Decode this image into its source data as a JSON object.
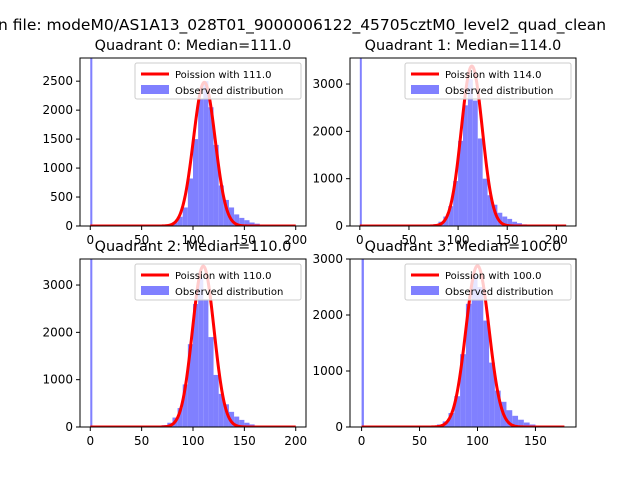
{
  "figure": {
    "title": "n file: modeM0/AS1A13_028T01_9000006122_45705cztM0_level2_quad_clean"
  },
  "colors": {
    "poisson_line": "#ff0000",
    "observed_hist": "#8080ff",
    "axes": "#000000"
  },
  "chart_data": [
    {
      "type": "bar",
      "title": "Quadrant 0: Median=111.0",
      "xlim": [
        -10,
        210
      ],
      "ylim": [
        0,
        2900
      ],
      "xticks": [
        0,
        50,
        100,
        150,
        200
      ],
      "yticks": [
        0,
        500,
        1000,
        1500,
        2000,
        2500
      ],
      "legend": {
        "position": "top-right",
        "entries": [
          "Poission with 111.0",
          "Observed distribution"
        ]
      },
      "poisson": {
        "lambda": 111,
        "peak": 2480,
        "x_range": [
          0,
          200
        ]
      },
      "histogram": {
        "bins": [
          [
            0,
            2,
            2900
          ],
          [
            60,
            65,
            2
          ],
          [
            65,
            70,
            5
          ],
          [
            70,
            75,
            12
          ],
          [
            75,
            80,
            25
          ],
          [
            80,
            85,
            65
          ],
          [
            85,
            90,
            160
          ],
          [
            90,
            95,
            320
          ],
          [
            95,
            100,
            820
          ],
          [
            100,
            105,
            1500
          ],
          [
            105,
            110,
            2200
          ],
          [
            110,
            115,
            2500
          ],
          [
            115,
            120,
            2050
          ],
          [
            120,
            125,
            1400
          ],
          [
            125,
            130,
            700
          ],
          [
            130,
            135,
            450
          ],
          [
            135,
            140,
            320
          ],
          [
            140,
            145,
            200
          ],
          [
            145,
            150,
            140
          ],
          [
            150,
            155,
            100
          ],
          [
            155,
            160,
            60
          ],
          [
            160,
            165,
            40
          ],
          [
            165,
            170,
            20
          ],
          [
            170,
            175,
            10
          ],
          [
            175,
            180,
            5
          ]
        ]
      }
    },
    {
      "type": "bar",
      "title": "Quadrant 1: Median=114.0",
      "xlim": [
        -10,
        220
      ],
      "ylim": [
        0,
        3550
      ],
      "xticks": [
        0,
        50,
        100,
        150,
        200
      ],
      "yticks": [
        0,
        1000,
        2000,
        3000
      ],
      "legend": {
        "position": "top-right",
        "entries": [
          "Poission with 114.0",
          "Observed distribution"
        ]
      },
      "poisson": {
        "lambda": 114,
        "peak": 3380,
        "x_range": [
          0,
          210
        ]
      },
      "histogram": {
        "bins": [
          [
            0,
            2,
            3550
          ],
          [
            60,
            65,
            3
          ],
          [
            65,
            70,
            8
          ],
          [
            70,
            75,
            20
          ],
          [
            75,
            80,
            40
          ],
          [
            80,
            85,
            90
          ],
          [
            85,
            90,
            200
          ],
          [
            90,
            95,
            420
          ],
          [
            95,
            100,
            950
          ],
          [
            100,
            105,
            1800
          ],
          [
            105,
            110,
            2550
          ],
          [
            110,
            115,
            3100
          ],
          [
            115,
            120,
            2650
          ],
          [
            120,
            125,
            1850
          ],
          [
            125,
            130,
            1000
          ],
          [
            130,
            135,
            650
          ],
          [
            135,
            140,
            450
          ],
          [
            140,
            145,
            280
          ],
          [
            145,
            150,
            200
          ],
          [
            150,
            155,
            150
          ],
          [
            155,
            160,
            90
          ],
          [
            160,
            165,
            60
          ],
          [
            165,
            170,
            35
          ],
          [
            170,
            175,
            20
          ],
          [
            175,
            180,
            10
          ],
          [
            180,
            185,
            5
          ]
        ]
      }
    },
    {
      "type": "bar",
      "title": "Quadrant 2: Median=110.0",
      "xlim": [
        -10,
        210
      ],
      "ylim": [
        0,
        3550
      ],
      "xticks": [
        0,
        50,
        100,
        150,
        200
      ],
      "yticks": [
        0,
        1000,
        2000,
        3000
      ],
      "legend": {
        "position": "top-right",
        "entries": [
          "Poission with 110.0",
          "Observed distribution"
        ]
      },
      "poisson": {
        "lambda": 110,
        "peak": 3400,
        "x_range": [
          0,
          200
        ]
      },
      "histogram": {
        "bins": [
          [
            0,
            2,
            3550
          ],
          [
            55,
            60,
            3
          ],
          [
            60,
            65,
            8
          ],
          [
            65,
            70,
            15
          ],
          [
            70,
            75,
            40
          ],
          [
            75,
            80,
            90
          ],
          [
            80,
            85,
            200
          ],
          [
            85,
            90,
            400
          ],
          [
            90,
            95,
            900
          ],
          [
            95,
            100,
            1750
          ],
          [
            100,
            105,
            2600
          ],
          [
            105,
            110,
            3150
          ],
          [
            110,
            115,
            2700
          ],
          [
            115,
            120,
            1900
          ],
          [
            120,
            125,
            1100
          ],
          [
            125,
            130,
            700
          ],
          [
            130,
            135,
            480
          ],
          [
            135,
            140,
            320
          ],
          [
            140,
            145,
            220
          ],
          [
            145,
            150,
            150
          ],
          [
            150,
            155,
            90
          ],
          [
            155,
            160,
            55
          ],
          [
            160,
            165,
            30
          ],
          [
            165,
            170,
            15
          ],
          [
            170,
            175,
            8
          ]
        ]
      }
    },
    {
      "type": "bar",
      "title": "Quadrant 3: Median=100.0",
      "xlim": [
        -10,
        185
      ],
      "ylim": [
        0,
        3000
      ],
      "xticks": [
        0,
        50,
        100,
        150
      ],
      "yticks": [
        0,
        1000,
        2000,
        3000
      ],
      "legend": {
        "position": "top-right",
        "entries": [
          "Poission with 100.0",
          "Observed distribution"
        ]
      },
      "poisson": {
        "lambda": 100,
        "peak": 2880,
        "x_range": [
          0,
          175
        ]
      },
      "histogram": {
        "bins": [
          [
            0,
            2,
            3000
          ],
          [
            50,
            55,
            3
          ],
          [
            55,
            60,
            8
          ],
          [
            60,
            65,
            20
          ],
          [
            65,
            70,
            45
          ],
          [
            70,
            75,
            100
          ],
          [
            75,
            80,
            250
          ],
          [
            80,
            85,
            550
          ],
          [
            85,
            90,
            1300
          ],
          [
            90,
            95,
            2200
          ],
          [
            95,
            100,
            2700
          ],
          [
            100,
            105,
            2500
          ],
          [
            105,
            110,
            1900
          ],
          [
            110,
            115,
            1150
          ],
          [
            115,
            120,
            650
          ],
          [
            120,
            125,
            450
          ],
          [
            125,
            130,
            300
          ],
          [
            130,
            135,
            200
          ],
          [
            135,
            140,
            130
          ],
          [
            140,
            145,
            80
          ],
          [
            145,
            150,
            45
          ],
          [
            150,
            155,
            20
          ],
          [
            155,
            160,
            10
          ]
        ]
      }
    }
  ]
}
